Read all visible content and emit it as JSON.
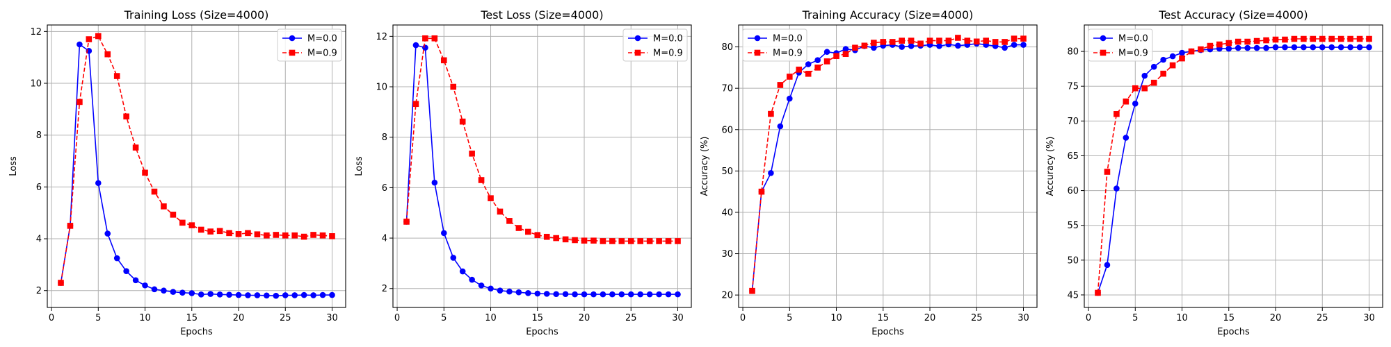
{
  "chart_data": [
    {
      "type": "line",
      "title": "Training Loss (Size=4000)",
      "xlabel": "Epochs",
      "ylabel": "Loss",
      "xlim": [
        -0.45,
        31.45
      ],
      "ylim": [
        1.35,
        12.25
      ],
      "xticks": [
        0,
        5,
        10,
        15,
        20,
        25,
        30
      ],
      "yticks": [
        2,
        4,
        6,
        8,
        10,
        12
      ],
      "grid": true,
      "legend": "upper right",
      "x": [
        1,
        2,
        3,
        4,
        5,
        6,
        7,
        8,
        9,
        10,
        11,
        12,
        13,
        14,
        15,
        16,
        17,
        18,
        19,
        20,
        21,
        22,
        23,
        24,
        25,
        26,
        27,
        28,
        29,
        30
      ],
      "series": [
        {
          "name": "M=0.0",
          "color": "#0000ff",
          "marker": "circle",
          "dash": "solid",
          "values": [
            2.3,
            4.5,
            11.5,
            11.25,
            6.15,
            4.2,
            3.25,
            2.75,
            2.4,
            2.2,
            2.05,
            2.0,
            1.95,
            1.92,
            1.9,
            1.85,
            1.87,
            1.85,
            1.84,
            1.83,
            1.82,
            1.82,
            1.81,
            1.8,
            1.82,
            1.82,
            1.83,
            1.82,
            1.83,
            1.83
          ]
        },
        {
          "name": "M=0.9",
          "color": "#ff0000",
          "marker": "square",
          "dash": "dashed",
          "values": [
            2.3,
            4.5,
            9.28,
            11.7,
            11.82,
            11.12,
            10.28,
            8.72,
            7.52,
            6.55,
            5.82,
            5.25,
            4.93,
            4.62,
            4.52,
            4.35,
            4.28,
            4.3,
            4.22,
            4.18,
            4.22,
            4.17,
            4.13,
            4.15,
            4.13,
            4.13,
            4.08,
            4.15,
            4.13,
            4.1
          ]
        }
      ]
    },
    {
      "type": "line",
      "title": "Test Loss (Size=4000)",
      "xlabel": "Epochs",
      "ylabel": "Loss",
      "xlim": [
        -0.45,
        31.45
      ],
      "ylim": [
        1.25,
        12.45
      ],
      "xticks": [
        0,
        5,
        10,
        15,
        20,
        25,
        30
      ],
      "yticks": [
        2,
        4,
        6,
        8,
        10,
        12
      ],
      "grid": true,
      "legend": "upper right",
      "x": [
        1,
        2,
        3,
        4,
        5,
        6,
        7,
        8,
        9,
        10,
        11,
        12,
        13,
        14,
        15,
        16,
        17,
        18,
        19,
        20,
        21,
        22,
        23,
        24,
        25,
        26,
        27,
        28,
        29,
        30
      ],
      "series": [
        {
          "name": "M=0.0",
          "color": "#0000ff",
          "marker": "circle",
          "dash": "solid",
          "values": [
            4.65,
            11.65,
            11.55,
            6.2,
            4.2,
            3.22,
            2.68,
            2.35,
            2.12,
            2.0,
            1.92,
            1.88,
            1.85,
            1.82,
            1.8,
            1.79,
            1.78,
            1.78,
            1.77,
            1.77,
            1.77,
            1.77,
            1.77,
            1.77,
            1.77,
            1.77,
            1.77,
            1.77,
            1.77,
            1.77
          ]
        },
        {
          "name": "M=0.9",
          "color": "#ff0000",
          "marker": "square",
          "dash": "dashed",
          "values": [
            4.65,
            9.32,
            11.92,
            11.92,
            11.05,
            10.0,
            8.62,
            7.35,
            6.3,
            5.58,
            5.05,
            4.68,
            4.4,
            4.25,
            4.12,
            4.05,
            4.0,
            3.95,
            3.92,
            3.9,
            3.9,
            3.88,
            3.88,
            3.88,
            3.88,
            3.88,
            3.88,
            3.88,
            3.88,
            3.88
          ]
        }
      ]
    },
    {
      "type": "line",
      "title": "Training Accuracy (Size=4000)",
      "xlabel": "Epochs",
      "ylabel": "Accuracy (%)",
      "xlim": [
        -0.45,
        31.45
      ],
      "ylim": [
        17.0,
        85.3
      ],
      "xticks": [
        0,
        5,
        10,
        15,
        20,
        25,
        30
      ],
      "yticks": [
        20,
        30,
        40,
        50,
        60,
        70,
        80
      ],
      "grid": true,
      "legend": "upper left",
      "x": [
        1,
        2,
        3,
        4,
        5,
        6,
        7,
        8,
        9,
        10,
        11,
        12,
        13,
        14,
        15,
        16,
        17,
        18,
        19,
        20,
        21,
        22,
        23,
        24,
        25,
        26,
        27,
        28,
        29,
        30
      ],
      "series": [
        {
          "name": "M=0.0",
          "color": "#0000ff",
          "marker": "circle",
          "dash": "solid",
          "values": [
            21.0,
            45.0,
            49.5,
            60.8,
            67.5,
            73.8,
            75.8,
            76.8,
            78.8,
            78.5,
            79.5,
            79.2,
            80.2,
            79.8,
            80.3,
            80.5,
            80.0,
            80.2,
            80.3,
            80.5,
            80.2,
            80.6,
            80.3,
            80.5,
            80.8,
            80.5,
            80.2,
            79.8,
            80.5,
            80.5
          ]
        },
        {
          "name": "M=0.9",
          "color": "#ff0000",
          "marker": "square",
          "dash": "dashed",
          "values": [
            21.0,
            45.0,
            63.8,
            70.8,
            72.8,
            74.5,
            73.5,
            75.0,
            76.5,
            77.8,
            78.3,
            79.8,
            80.3,
            81.0,
            81.2,
            81.2,
            81.5,
            81.5,
            80.8,
            81.5,
            81.5,
            81.5,
            82.2,
            81.5,
            81.3,
            81.5,
            81.2,
            81.2,
            82.0,
            82.0
          ]
        }
      ]
    },
    {
      "type": "line",
      "title": "Test Accuracy (Size=4000)",
      "xlabel": "Epochs",
      "ylabel": "Accuracy (%)",
      "xlim": [
        -0.45,
        31.45
      ],
      "ylim": [
        43.2,
        83.8
      ],
      "xticks": [
        0,
        5,
        10,
        15,
        20,
        25,
        30
      ],
      "yticks": [
        45,
        50,
        55,
        60,
        65,
        70,
        75,
        80
      ],
      "grid": true,
      "legend": "upper left",
      "x": [
        1,
        2,
        3,
        4,
        5,
        6,
        7,
        8,
        9,
        10,
        11,
        12,
        13,
        14,
        15,
        16,
        17,
        18,
        19,
        20,
        21,
        22,
        23,
        24,
        25,
        26,
        27,
        28,
        29,
        30
      ],
      "series": [
        {
          "name": "M=0.0",
          "color": "#0000ff",
          "marker": "circle",
          "dash": "solid",
          "values": [
            45.3,
            49.3,
            60.3,
            67.6,
            72.5,
            76.5,
            77.8,
            78.8,
            79.3,
            79.8,
            80.0,
            80.2,
            80.3,
            80.4,
            80.4,
            80.5,
            80.5,
            80.5,
            80.5,
            80.6,
            80.6,
            80.6,
            80.6,
            80.6,
            80.6,
            80.6,
            80.6,
            80.6,
            80.6,
            80.6
          ]
        },
        {
          "name": "M=0.9",
          "color": "#ff0000",
          "marker": "square",
          "dash": "dashed",
          "values": [
            45.3,
            62.7,
            71.0,
            72.8,
            74.7,
            74.7,
            75.5,
            76.8,
            78.0,
            79.0,
            80.0,
            80.3,
            80.8,
            81.0,
            81.2,
            81.4,
            81.4,
            81.5,
            81.6,
            81.7,
            81.7,
            81.8,
            81.8,
            81.8,
            81.8,
            81.8,
            81.8,
            81.8,
            81.8,
            81.8
          ]
        }
      ]
    }
  ]
}
